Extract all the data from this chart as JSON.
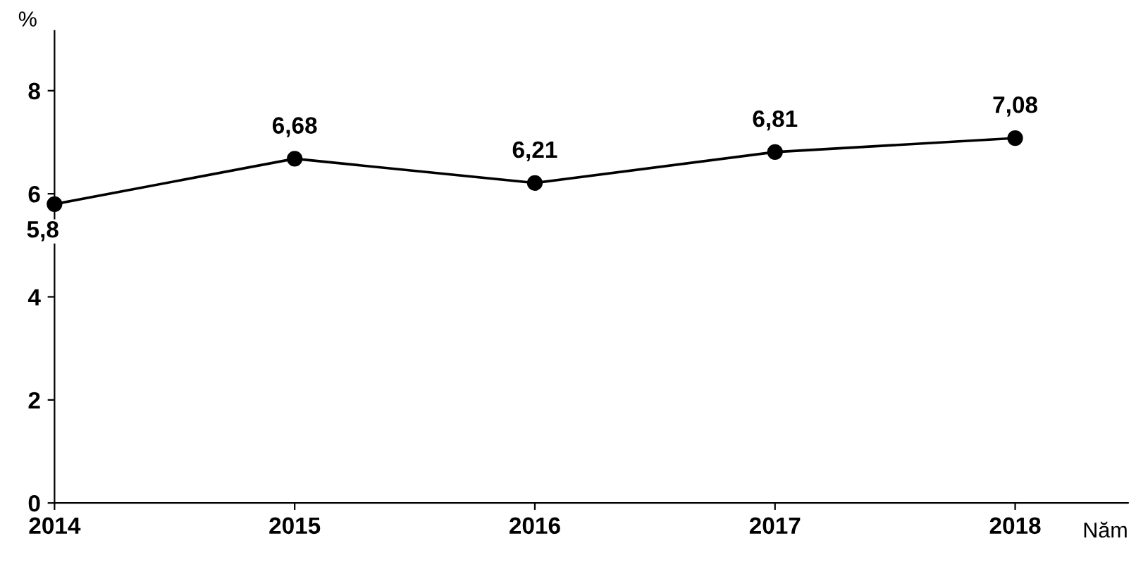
{
  "chart_data": {
    "type": "line",
    "xlabel": "Năm",
    "ylabel": "%",
    "x": [
      2014,
      2015,
      2016,
      2017,
      2018
    ],
    "series": [
      {
        "color": "#000000",
        "values": [
          5.8,
          6.68,
          6.21,
          6.81,
          7.08
        ],
        "value_labels": [
          "5,8",
          "6,68",
          "6,21",
          "6,81",
          "7,08"
        ]
      }
    ],
    "xlim": [
      2014,
      2018.47
    ],
    "ylim": [
      0,
      9.16
    ],
    "xticks": [
      2014,
      2015,
      2016,
      2017,
      2018
    ],
    "yticks": [
      0,
      2,
      4,
      6,
      8
    ],
    "marker": "circle",
    "line_style": "solid",
    "grid": false,
    "legend": false
  }
}
